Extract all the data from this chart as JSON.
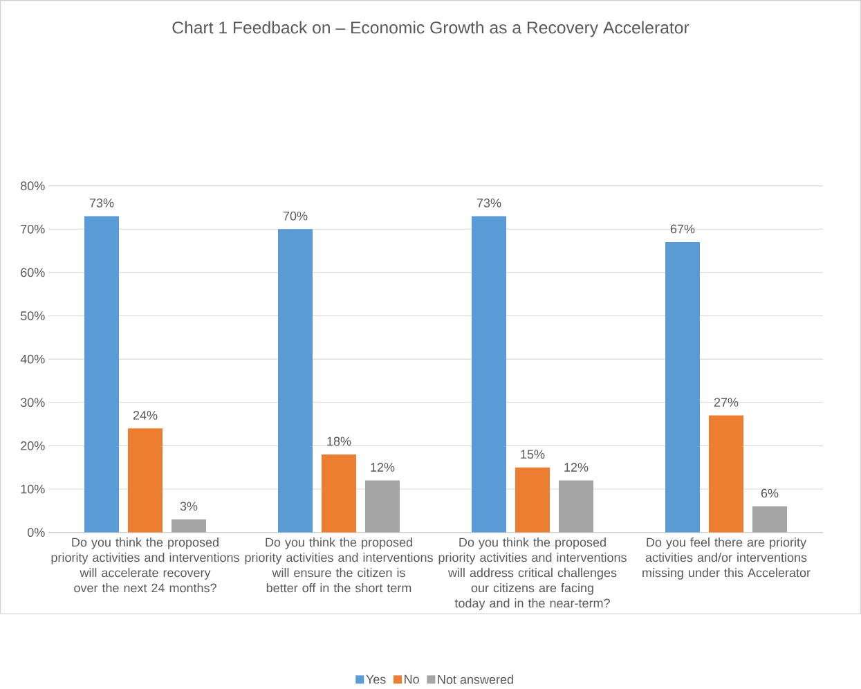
{
  "chart_data": {
    "type": "bar",
    "title": "Chart 1 Feedback on – Economic Growth as a Recovery Accelerator",
    "categories": [
      "Do you think the proposed priority activities and interventions will accelerate recovery over the next 24 months?",
      "Do you think the proposed priority activities and interventions will ensure the citizen is better off in the short term",
      "Do you think the proposed priority activities and interventions will address critical challenges our citizens are facing today and in the near-term?",
      "Do you feel there are priority activities and/or interventions missing under this Accelerator"
    ],
    "series": [
      {
        "name": "Yes",
        "color": "#5b9bd5",
        "values": [
          73,
          70,
          73,
          67
        ],
        "value_labels": [
          "73%",
          "70%",
          "73%",
          "67%"
        ]
      },
      {
        "name": "No",
        "color": "#ed7d31",
        "values": [
          24,
          18,
          15,
          27
        ],
        "value_labels": [
          "24%",
          "18%",
          "15%",
          "27%"
        ]
      },
      {
        "name": "Not answered",
        "color": "#a5a5a5",
        "values": [
          3,
          12,
          12,
          6
        ],
        "value_labels": [
          "3%",
          "12%",
          "12%",
          "6%"
        ]
      }
    ],
    "ylim": [
      0,
      80
    ],
    "yticks": [
      {
        "value": 0,
        "label": "0%"
      },
      {
        "value": 10,
        "label": "10%"
      },
      {
        "value": 20,
        "label": "20%"
      },
      {
        "value": 30,
        "label": "30%"
      },
      {
        "value": 40,
        "label": "40%"
      },
      {
        "value": 50,
        "label": "50%"
      },
      {
        "value": 60,
        "label": "60%"
      },
      {
        "value": 70,
        "label": "70%"
      },
      {
        "value": 80,
        "label": "80%"
      }
    ],
    "grid": "y",
    "legend": "bottom"
  }
}
